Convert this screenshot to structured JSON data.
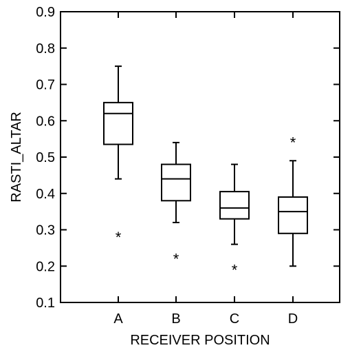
{
  "chart_data": {
    "type": "box",
    "xlabel": "RECEIVER POSITION",
    "ylabel": "RASTI_ALTAR",
    "ylim": [
      0.1,
      0.9
    ],
    "yticks": [
      "0.1",
      "0.2",
      "0.3",
      "0.4",
      "0.5",
      "0.6",
      "0.7",
      "0.8",
      "0.9"
    ],
    "categories": [
      "A",
      "B",
      "C",
      "D"
    ],
    "boxes": [
      {
        "category": "A",
        "whisker_low": 0.44,
        "q1": 0.535,
        "median": 0.62,
        "q3": 0.65,
        "whisker_high": 0.75,
        "outliers": [
          0.29
        ]
      },
      {
        "category": "B",
        "whisker_low": 0.32,
        "q1": 0.38,
        "median": 0.44,
        "q3": 0.48,
        "whisker_high": 0.54,
        "outliers": [
          0.23
        ]
      },
      {
        "category": "C",
        "whisker_low": 0.26,
        "q1": 0.33,
        "median": 0.36,
        "q3": 0.405,
        "whisker_high": 0.48,
        "outliers": [
          0.2
        ]
      },
      {
        "category": "D",
        "whisker_low": 0.2,
        "q1": 0.29,
        "median": 0.35,
        "q3": 0.39,
        "whisker_high": 0.49,
        "outliers": [
          0.55
        ]
      }
    ],
    "outlier_marker": "*",
    "grid": false,
    "legend": false
  }
}
